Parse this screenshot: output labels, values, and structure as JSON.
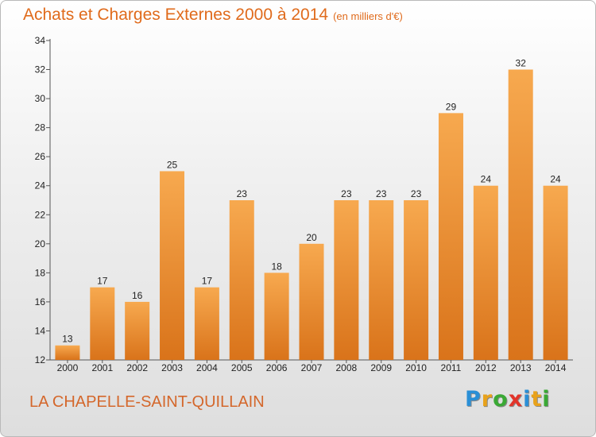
{
  "header": {
    "title": "Achats et Charges Externes 2000 à 2014",
    "subtitle": "(en milliers d'€)"
  },
  "footer": {
    "commune": "LA CHAPELLE-SAINT-QUILLAIN",
    "logo_letters": [
      {
        "ch": "P",
        "color": "#2a8fd6"
      },
      {
        "ch": "r",
        "color": "#e8a21b"
      },
      {
        "ch": "o",
        "color": "#3aa935"
      },
      {
        "ch": "x",
        "color": "#e2342a"
      },
      {
        "ch": "i",
        "color": "#2a8fd6"
      },
      {
        "ch": "t",
        "color": "#e8a21b"
      },
      {
        "ch": "i",
        "color": "#3aa935"
      }
    ]
  },
  "colors": {
    "bar_light": "#f7a94f",
    "bar_dark": "#d9731a",
    "title": "#e06b1c"
  },
  "chart_data": {
    "type": "bar",
    "title": "Achats et Charges Externes 2000 à 2014",
    "subtitle": "(en milliers d'€)",
    "xlabel": "",
    "ylabel": "",
    "categories": [
      "2000",
      "2001",
      "2002",
      "2003",
      "2004",
      "2005",
      "2006",
      "2007",
      "2008",
      "2009",
      "2010",
      "2011",
      "2012",
      "2013",
      "2014"
    ],
    "values": [
      13,
      17,
      16,
      25,
      17,
      23,
      18,
      20,
      23,
      23,
      23,
      29,
      24,
      32,
      24
    ],
    "ylim": [
      12,
      34
    ],
    "yticks": [
      12,
      14,
      16,
      18,
      20,
      22,
      24,
      26,
      28,
      30,
      32,
      34
    ],
    "grid": false,
    "legend": "none"
  }
}
